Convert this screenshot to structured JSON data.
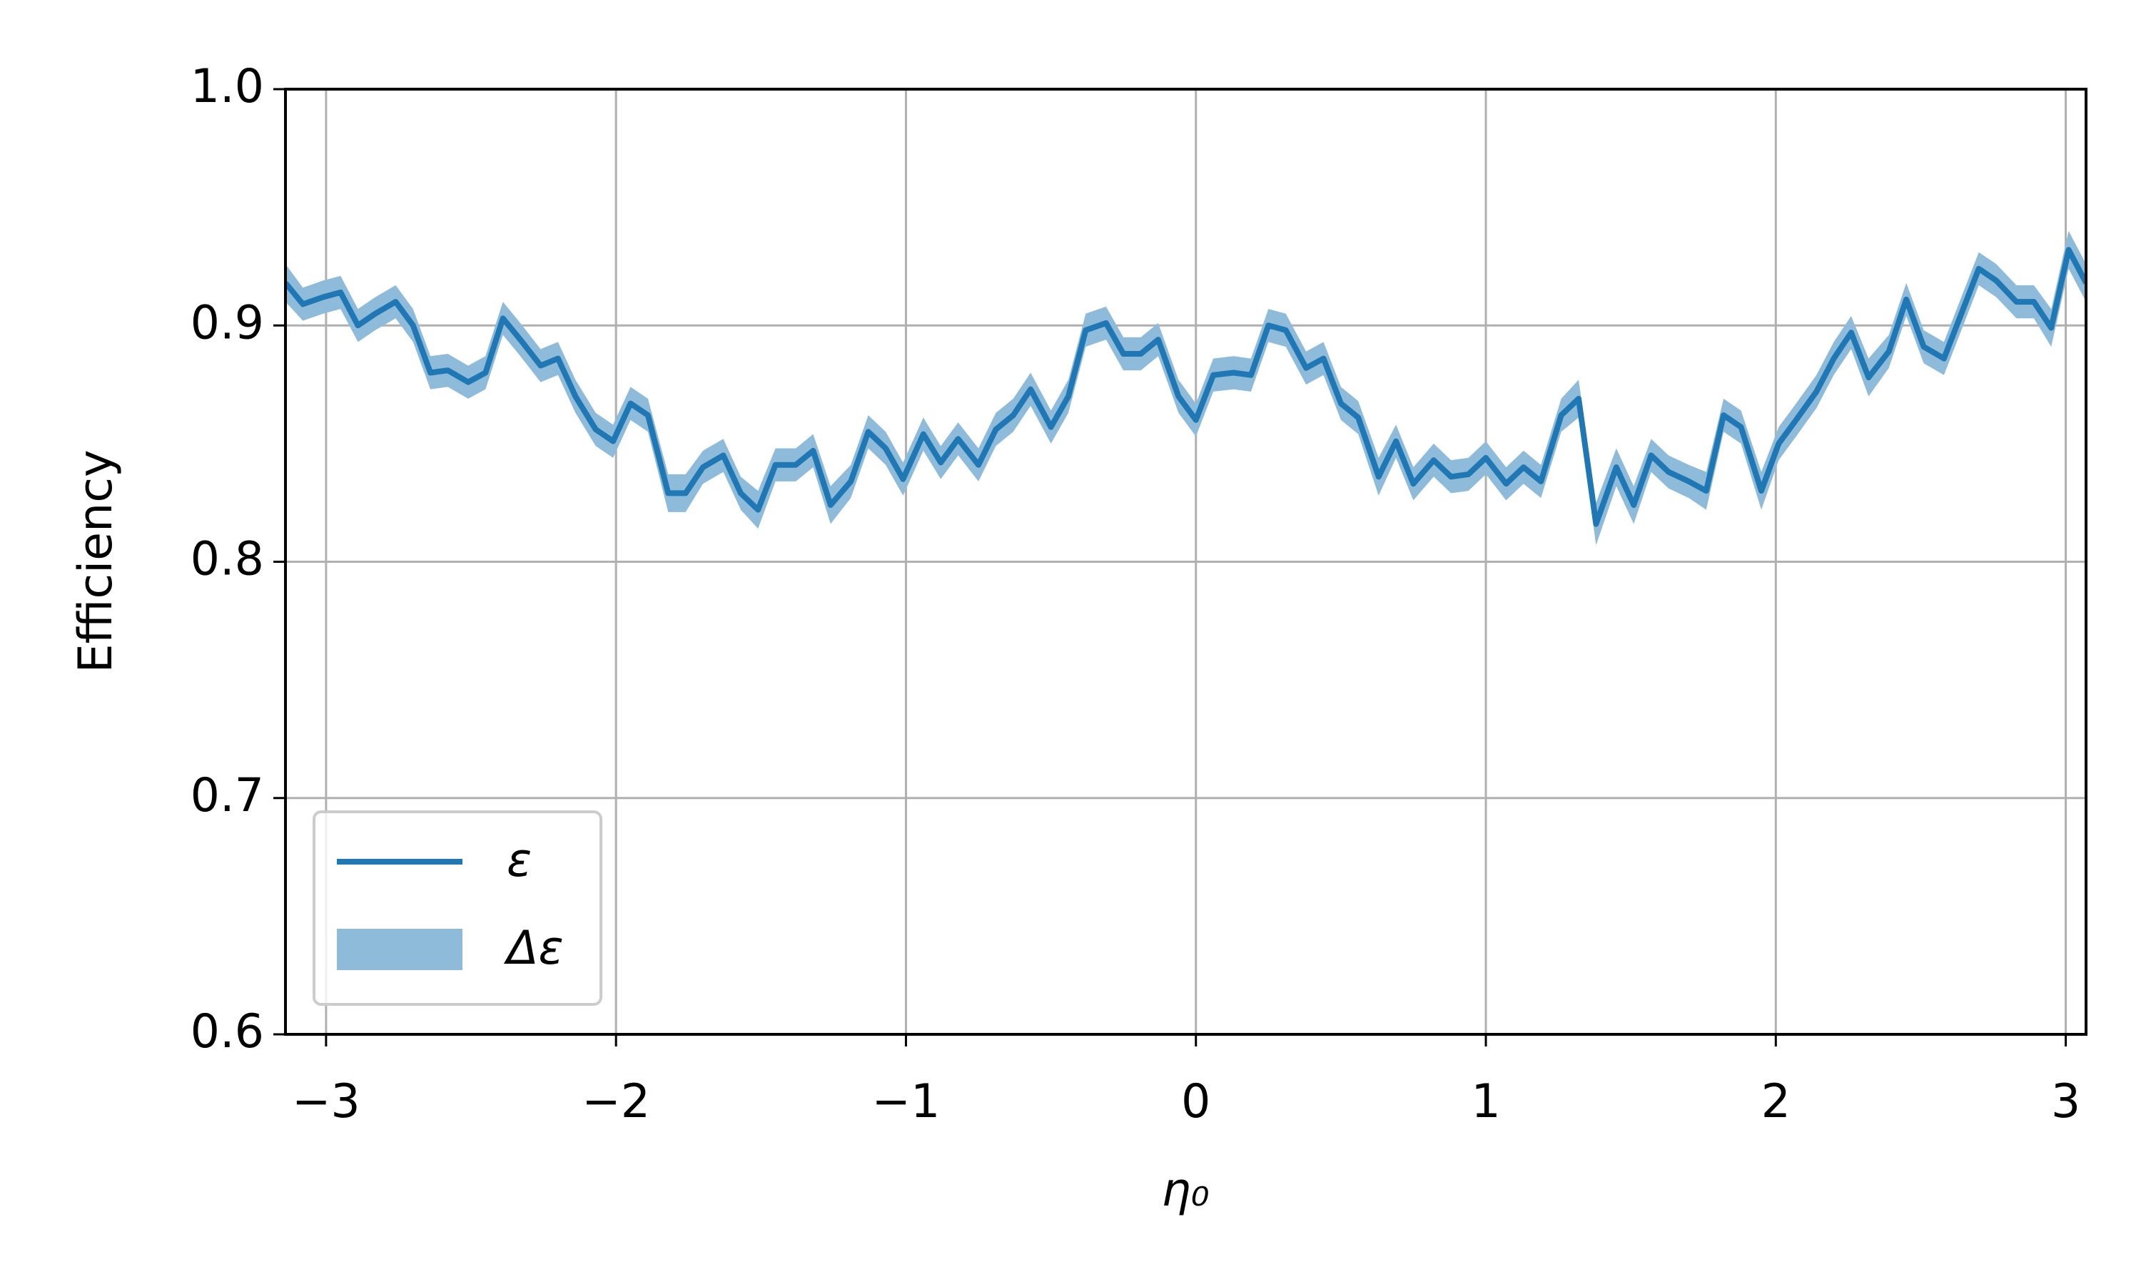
{
  "chart_data": {
    "type": "line-band",
    "xlabel": "η₀",
    "ylabel": "Efficiency",
    "xlim": [
      -3.14,
      3.07
    ],
    "ylim": [
      0.6,
      1.0
    ],
    "xticks": [
      {
        "value": -3,
        "label": "−3"
      },
      {
        "value": -2,
        "label": "−2"
      },
      {
        "value": -1,
        "label": "−1"
      },
      0,
      1,
      2,
      3
    ],
    "yticks": [
      0.6,
      0.7,
      0.8,
      0.9,
      {
        "value": 1,
        "label": "1.0"
      }
    ],
    "grid": true,
    "legend": "lower left",
    "x": [
      -3.14,
      -3.08,
      -3.01,
      -2.95,
      -2.89,
      -2.83,
      -2.76,
      -2.7,
      -2.64,
      -2.58,
      -2.51,
      -2.45,
      -2.39,
      -2.33,
      -2.26,
      -2.2,
      -2.14,
      -2.07,
      -2.01,
      -1.95,
      -1.89,
      -1.82,
      -1.76,
      -1.7,
      -1.63,
      -1.57,
      -1.51,
      -1.45,
      -1.38,
      -1.32,
      -1.26,
      -1.19,
      -1.13,
      -1.07,
      -1.01,
      -0.94,
      -0.88,
      -0.82,
      -0.75,
      -0.69,
      -0.63,
      -0.57,
      -0.5,
      -0.44,
      -0.38,
      -0.31,
      -0.25,
      -0.19,
      -0.13,
      -0.06,
      0.0,
      0.06,
      0.13,
      0.19,
      0.25,
      0.31,
      0.38,
      0.44,
      0.5,
      0.56,
      0.63,
      0.69,
      0.75,
      0.82,
      0.88,
      0.94,
      1.0,
      1.07,
      1.13,
      1.19,
      1.26,
      1.32,
      1.38,
      1.45,
      1.51,
      1.57,
      1.63,
      1.7,
      1.76,
      1.82,
      1.88,
      1.95,
      2.01,
      2.07,
      2.14,
      2.2,
      2.26,
      2.32,
      2.39,
      2.45,
      2.51,
      2.58,
      2.64,
      2.7,
      2.76,
      2.83,
      2.89,
      2.95,
      3.01,
      3.07
    ],
    "series": [
      {
        "name": "ε",
        "color": "#1f77b4",
        "values": [
          0.918,
          0.909,
          0.912,
          0.914,
          0.9,
          0.905,
          0.91,
          0.9,
          0.88,
          0.881,
          0.876,
          0.88,
          0.903,
          0.894,
          0.883,
          0.886,
          0.87,
          0.856,
          0.851,
          0.867,
          0.862,
          0.829,
          0.829,
          0.84,
          0.845,
          0.829,
          0.822,
          0.841,
          0.841,
          0.847,
          0.824,
          0.834,
          0.855,
          0.848,
          0.835,
          0.854,
          0.842,
          0.852,
          0.841,
          0.856,
          0.862,
          0.873,
          0.857,
          0.87,
          0.898,
          0.901,
          0.888,
          0.888,
          0.894,
          0.87,
          0.86,
          0.879,
          0.88,
          0.879,
          0.9,
          0.898,
          0.882,
          0.886,
          0.867,
          0.861,
          0.836,
          0.851,
          0.833,
          0.843,
          0.836,
          0.837,
          0.844,
          0.833,
          0.84,
          0.834,
          0.862,
          0.869,
          0.816,
          0.84,
          0.824,
          0.845,
          0.838,
          0.834,
          0.83,
          0.862,
          0.857,
          0.83,
          0.85,
          0.86,
          0.872,
          0.886,
          0.897,
          0.878,
          0.889,
          0.911,
          0.891,
          0.886,
          0.905,
          0.924,
          0.919,
          0.91,
          0.91,
          0.899,
          0.932,
          0.918
        ]
      },
      {
        "name": "Δε",
        "color": "#8fbbda",
        "errors": [
          0.008,
          0.007,
          0.007,
          0.007,
          0.007,
          0.007,
          0.007,
          0.007,
          0.007,
          0.007,
          0.007,
          0.007,
          0.007,
          0.007,
          0.007,
          0.007,
          0.007,
          0.007,
          0.007,
          0.007,
          0.007,
          0.008,
          0.008,
          0.007,
          0.007,
          0.007,
          0.008,
          0.007,
          0.007,
          0.007,
          0.008,
          0.007,
          0.007,
          0.007,
          0.007,
          0.007,
          0.007,
          0.007,
          0.007,
          0.007,
          0.007,
          0.007,
          0.007,
          0.007,
          0.007,
          0.007,
          0.007,
          0.007,
          0.007,
          0.007,
          0.007,
          0.007,
          0.007,
          0.007,
          0.007,
          0.007,
          0.007,
          0.007,
          0.007,
          0.007,
          0.008,
          0.007,
          0.007,
          0.007,
          0.007,
          0.007,
          0.007,
          0.007,
          0.007,
          0.007,
          0.007,
          0.008,
          0.009,
          0.008,
          0.008,
          0.007,
          0.007,
          0.007,
          0.008,
          0.007,
          0.007,
          0.008,
          0.007,
          0.007,
          0.007,
          0.007,
          0.007,
          0.008,
          0.007,
          0.007,
          0.007,
          0.007,
          0.007,
          0.007,
          0.007,
          0.007,
          0.007,
          0.008,
          0.008,
          0.008
        ]
      }
    ]
  }
}
